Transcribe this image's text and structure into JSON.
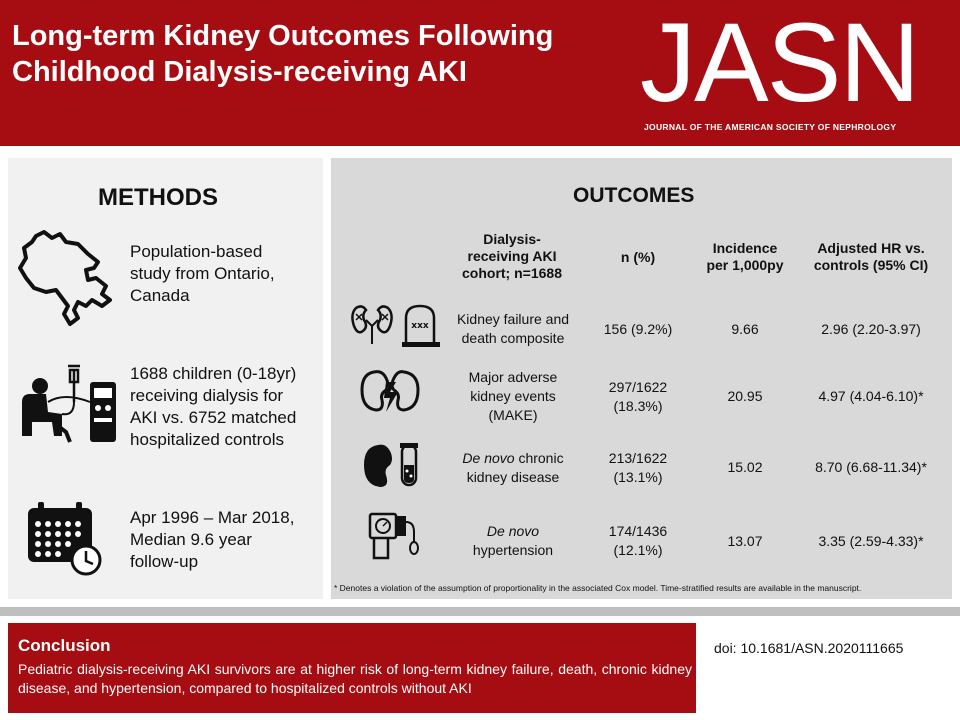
{
  "header": {
    "title_line1": "Long-term Kidney Outcomes Following",
    "title_line2": "Childhood Dialysis-receiving AKI",
    "logo": "JASN",
    "logo_subtitle": "JOURNAL OF THE AMERICAN SOCIETY OF NEPHROLOGY"
  },
  "methods": {
    "title": "METHODS",
    "items": [
      {
        "icon": "ontario-map-icon",
        "line1": "Population-based",
        "line2": "study from Ontario,",
        "line3": "Canada",
        "line4": ""
      },
      {
        "icon": "dialysis-patient-icon",
        "line1": "1688 children (0-18yr)",
        "line2": "receiving dialysis for",
        "line3": "AKI vs. 6752 matched",
        "line4": "hospitalized controls"
      },
      {
        "icon": "calendar-clock-icon",
        "line1": "Apr 1996 – Mar 2018,",
        "line2": "Median 9.6 year",
        "line3": "follow-up",
        "line4": ""
      }
    ]
  },
  "outcomes": {
    "title": "OUTCOMES",
    "columns": {
      "cohort": [
        "Dialysis-",
        "receiving AKI",
        "cohort; n=1688"
      ],
      "n": "n (%)",
      "incidence": [
        "Incidence",
        "per 1,000py"
      ],
      "hr_line1": "Adjusted HR vs.",
      "hr_line2": "controls (95% CI)"
    },
    "rows": [
      {
        "icon": "kidney-tombstone-icon",
        "name": [
          "Kidney failure and",
          "death composite"
        ],
        "n": [
          "156 (9.2%)"
        ],
        "incidence": "9.66",
        "hr": "2.96 (2.20-3.97)"
      },
      {
        "icon": "kidney-lightning-icon",
        "name": [
          "Major adverse",
          "kidney events",
          "(MAKE)"
        ],
        "n": [
          "297/1622",
          "(18.3%)"
        ],
        "incidence": "20.95",
        "hr": "4.97 (4.04-6.10)*"
      },
      {
        "icon": "kidney-test-tube-icon",
        "name": [
          "De novo chronic",
          "kidney disease"
        ],
        "n": [
          "213/1622",
          "(13.1%)"
        ],
        "incidence": "15.02",
        "hr": "8.70 (6.68-11.34)*"
      },
      {
        "icon": "blood-pressure-monitor-icon",
        "name": [
          "De novo",
          "hypertension"
        ],
        "n": [
          "174/1436",
          "(12.1%)"
        ],
        "incidence": "13.07",
        "hr": "3.35 (2.59-4.33)*"
      }
    ],
    "footnote": "* Denotes a violation of the assumption of proportionality in the associated Cox model. Time-stratified results are available in the manuscript."
  },
  "conclusion": {
    "title": "Conclusion",
    "text": "Pediatric dialysis-receiving AKI survivors are at higher risk of long-term kidney failure, death, chronic kidney disease, and hypertension, compared to hospitalized controls without AKI"
  },
  "doi": "doi: 10.1681/ASN.2020111665",
  "colors": {
    "brand_red": "#a50d12",
    "panel_left": "#f1f1f1",
    "panel_right": "#d9d9d9",
    "divider": "#bfbfbf"
  }
}
